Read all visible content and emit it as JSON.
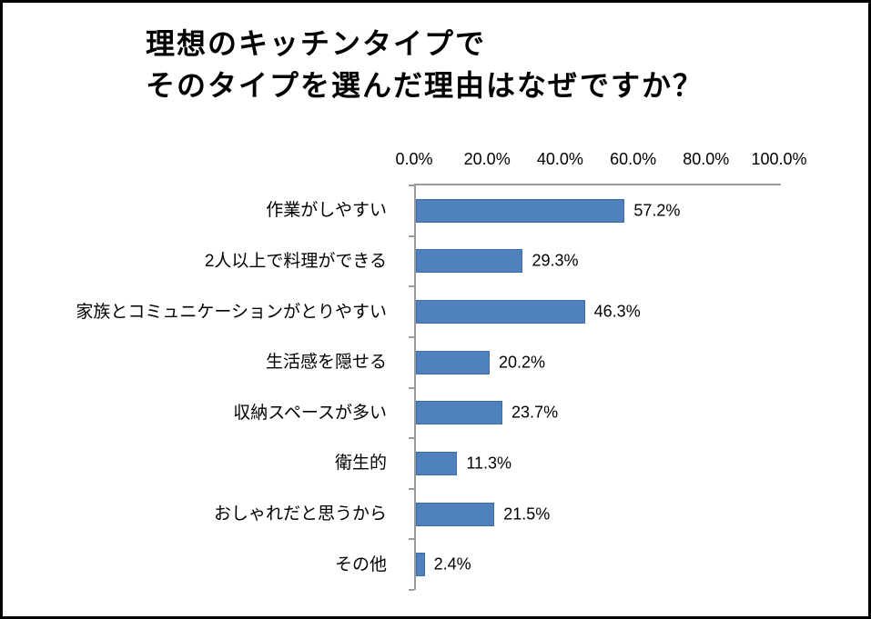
{
  "figure": {
    "background": "#FFFFFF",
    "border_color": "#000000"
  },
  "chart_data": {
    "type": "bar",
    "orientation": "horizontal",
    "title": "理想のキッチンタイプで そのタイプを選んだ理由はなぜですか？",
    "title_lines": [
      "理想のキッチンタイプで",
      "そのタイプを選んだ理由はなぜですか？"
    ],
    "categories": [
      "作業がしやすい",
      "2人以上で料理ができる",
      "家族とコミュニケーションがとりやすい",
      "生活感を隠せる",
      "収納スペースが多い",
      "衛生的",
      "おしゃれだと思うから",
      "その他"
    ],
    "values": [
      57.2,
      29.3,
      46.3,
      20.2,
      23.7,
      11.3,
      21.5,
      2.4
    ],
    "data_labels": [
      "57.2%",
      "29.3%",
      "46.3%",
      "20.2%",
      "23.7%",
      "11.3%",
      "21.5%",
      "2.4%"
    ],
    "x_ticks": [
      "0.0%",
      "20.0%",
      "40.0%",
      "60.0%",
      "80.0%",
      "100.0%"
    ],
    "xlim": [
      0,
      100
    ],
    "x_tick_step": 20,
    "xlabel": "",
    "ylabel": "",
    "grid": false,
    "legend": "none",
    "colors": {
      "bar_fill": "#4F81BD",
      "bar_border": "#3D6DA8",
      "axis_line": "#9B9B9B",
      "text": "#000000"
    }
  }
}
